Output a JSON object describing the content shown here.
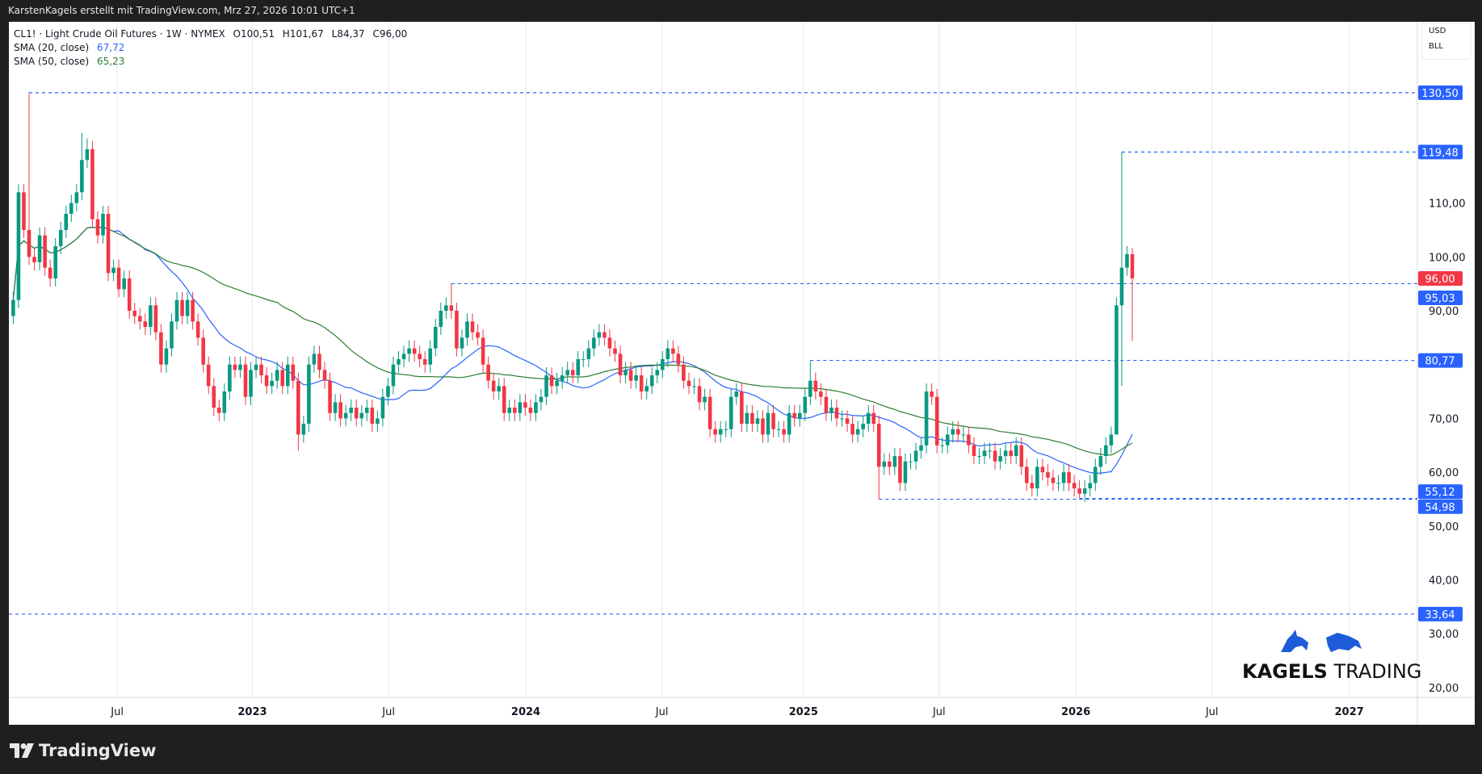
{
  "header": {
    "attribution": "KarstenKagels erstellt mit TradingView.com, Mrz 27, 2026 10:01 UTC+1"
  },
  "legend": {
    "symbol": "CL1! · Light Crude Oil Futures · 1W · NYMEX",
    "open": "O100,51",
    "high": "H101,67",
    "low": "L84,37",
    "close": "C96,00",
    "sma20_label": "SMA (20, close)",
    "sma20_value": "67,72",
    "sma50_label": "SMA (50, close)",
    "sma50_value": "65,23"
  },
  "price_axis": {
    "currency": "USD",
    "unit": "BLL"
  },
  "footer": {
    "brand": "TradingView"
  },
  "logo": {
    "text_bold": "KAGELS",
    "text_light": "TRADING"
  },
  "colors": {
    "up": "#089981",
    "down": "#f23645",
    "sma20": "#2962ff",
    "sma50": "#2e7d32",
    "levels": "#2962ff",
    "last_price": "#f23645",
    "background": "#1f1f1f"
  },
  "chart_data": {
    "type": "candlestick",
    "interval": "1W",
    "ylim": [
      17,
      135
    ],
    "y_ticks": [
      "110,00",
      "100,00",
      "90,00",
      "70,00",
      "60,00",
      "50,00",
      "40,00",
      "30,00",
      "20,00"
    ],
    "y_tick_values": [
      110,
      100,
      90,
      70,
      60,
      50,
      40,
      30,
      20
    ],
    "x_ticks": [
      {
        "label": "Jul",
        "week": 19.7,
        "bold": false
      },
      {
        "label": "2023",
        "week": 45.3,
        "bold": true
      },
      {
        "label": "Jul",
        "week": 71.1,
        "bold": false
      },
      {
        "label": "2024",
        "week": 97.1,
        "bold": true
      },
      {
        "label": "Jul",
        "week": 122.9,
        "bold": false
      },
      {
        "label": "2025",
        "week": 149.7,
        "bold": true
      },
      {
        "label": "Jul",
        "week": 175.4,
        "bold": false
      },
      {
        "label": "2026",
        "week": 201.3,
        "bold": true
      },
      {
        "label": "Jul",
        "week": 227.1,
        "bold": false
      },
      {
        "label": "2027",
        "week": 253.1,
        "bold": true
      }
    ],
    "closes": [
      92,
      112,
      105,
      100,
      99,
      104,
      98,
      96,
      102,
      105,
      108,
      110,
      112,
      118,
      120,
      107,
      104,
      108,
      97,
      98,
      94,
      96,
      90,
      89,
      88,
      87,
      91,
      86,
      80,
      83,
      88,
      92,
      89,
      92,
      88,
      85,
      80,
      76,
      72,
      71,
      75,
      80,
      79,
      80,
      74,
      79,
      80,
      78,
      76,
      77,
      79,
      76,
      80,
      77,
      67,
      69,
      80,
      82,
      79,
      77,
      71,
      73,
      70,
      71,
      72,
      70,
      71,
      72,
      69,
      70,
      74,
      76,
      80,
      81,
      82,
      83,
      82,
      81,
      80,
      83,
      87,
      90,
      91,
      90,
      83,
      85,
      88,
      86,
      85,
      80,
      77,
      75,
      76,
      71,
      72,
      71,
      73,
      72,
      71,
      73,
      74,
      78,
      76,
      77,
      78,
      79,
      78,
      81,
      81,
      83,
      85,
      86,
      85,
      83,
      82,
      78,
      79,
      77,
      78,
      75,
      76,
      78,
      79,
      81,
      83,
      82,
      80,
      77,
      76,
      76,
      73,
      74,
      68,
      67,
      68,
      68,
      74,
      75,
      69,
      71,
      69,
      70,
      67,
      71,
      68,
      68,
      67,
      71,
      70,
      71,
      74,
      77,
      75,
      74,
      71,
      72,
      70,
      70,
      69,
      67,
      68,
      69,
      71,
      69,
      61,
      62,
      61,
      63,
      58,
      62,
      62,
      64,
      65,
      75,
      74,
      65,
      65,
      67,
      68,
      67,
      67,
      65,
      63,
      63,
      64,
      64,
      62,
      63,
      64,
      63,
      65,
      61,
      58,
      57,
      61,
      60,
      59,
      58,
      58,
      60,
      58,
      57,
      56,
      57,
      58,
      61,
      63,
      65,
      67,
      91,
      98,
      100.51,
      96
    ],
    "overrides": [
      {
        "i": 3,
        "high": 130.5
      },
      {
        "i": 13,
        "high": 123
      },
      {
        "i": 14,
        "high": 122
      },
      {
        "i": 54,
        "low": 64
      },
      {
        "i": 83,
        "high": 95.03
      },
      {
        "i": 151,
        "high": 80.77
      },
      {
        "i": 164,
        "low": 54.98
      },
      {
        "i": 202,
        "low": 55.12
      },
      {
        "i": 209,
        "low": 69
      },
      {
        "i": 210,
        "high": 119.48,
        "low": 76
      },
      {
        "i": 212,
        "open": 100.51,
        "high": 101.67,
        "low": 84.37,
        "close": 96
      }
    ],
    "sma_periods": [
      20,
      50
    ],
    "levels": [
      {
        "price": 130.5,
        "label": "130,50",
        "from": 3
      },
      {
        "price": 119.48,
        "label": "119,48",
        "from": 210
      },
      {
        "price": 95.03,
        "label": "95,03",
        "from": 83
      },
      {
        "price": 80.77,
        "label": "80,77",
        "from": 151
      },
      {
        "price": 55.12,
        "label": "55,12",
        "from": 202
      },
      {
        "price": 54.98,
        "label": "54,98",
        "from": 164
      },
      {
        "price": 33.64,
        "label": "33,64",
        "from": -3
      }
    ],
    "last_price": {
      "price": 96,
      "label": "96,00"
    }
  }
}
